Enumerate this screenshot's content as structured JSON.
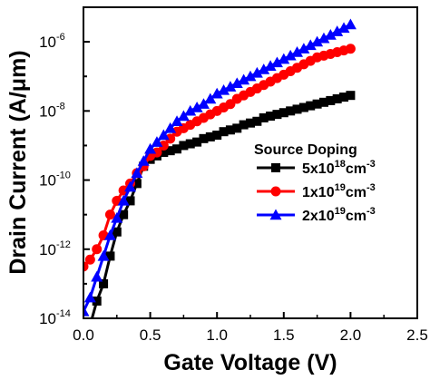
{
  "chart_data": {
    "type": "line",
    "xlabel": "Gate Voltage (V)",
    "ylabel": "Drain Current (A/μm)",
    "xlim": [
      0.0,
      2.5
    ],
    "ylim_exponent": [
      -14,
      -5
    ],
    "y_scale": "log",
    "x_ticks": [
      "0.0",
      "0.5",
      "1.0",
      "1.5",
      "2.0",
      "2.5"
    ],
    "y_ticks": [
      {
        "base": "10",
        "exp": "-6"
      },
      {
        "base": "10",
        "exp": "-8"
      },
      {
        "base": "10",
        "exp": "-10"
      },
      {
        "base": "10",
        "exp": "-12"
      },
      {
        "base": "10",
        "exp": "-14"
      }
    ],
    "legend": {
      "title": "Source Doping",
      "placement": "right"
    },
    "series": [
      {
        "name": "5x10^18 cm^-3",
        "label_parts": [
          "5x10",
          "18",
          "cm",
          "-3"
        ],
        "color": "#000000",
        "marker": "square",
        "x": [
          0.0,
          0.05,
          0.1,
          0.15,
          0.2,
          0.25,
          0.3,
          0.35,
          0.4,
          0.45,
          0.5,
          0.55,
          0.6,
          0.65,
          0.7,
          0.75,
          0.8,
          0.85,
          0.9,
          0.95,
          1.0,
          1.05,
          1.1,
          1.15,
          1.2,
          1.25,
          1.3,
          1.35,
          1.4,
          1.45,
          1.5,
          1.55,
          1.6,
          1.65,
          1.7,
          1.75,
          1.8,
          1.85,
          1.9,
          1.95,
          2.0
        ],
        "log10_y": [
          -14.4,
          -14.2,
          -13.5,
          -13.0,
          -12.2,
          -11.5,
          -11.0,
          -10.6,
          -10.1,
          -9.6,
          -9.4,
          -9.3,
          -9.2,
          -9.15,
          -9.1,
          -9.0,
          -8.95,
          -8.9,
          -8.8,
          -8.75,
          -8.7,
          -8.6,
          -8.55,
          -8.5,
          -8.4,
          -8.35,
          -8.3,
          -8.2,
          -8.15,
          -8.1,
          -8.05,
          -8.0,
          -7.95,
          -7.9,
          -7.85,
          -7.8,
          -7.75,
          -7.7,
          -7.65,
          -7.6,
          -7.55
        ]
      },
      {
        "name": "1x10^19 cm^-3",
        "label_parts": [
          "1x10",
          "19",
          "cm",
          "-3"
        ],
        "color": "#ff0000",
        "marker": "circle",
        "x": [
          0.0,
          0.05,
          0.1,
          0.15,
          0.2,
          0.25,
          0.3,
          0.35,
          0.4,
          0.45,
          0.5,
          0.55,
          0.6,
          0.65,
          0.7,
          0.75,
          0.8,
          0.85,
          0.9,
          0.95,
          1.0,
          1.05,
          1.1,
          1.15,
          1.2,
          1.25,
          1.3,
          1.35,
          1.4,
          1.45,
          1.5,
          1.55,
          1.6,
          1.65,
          1.7,
          1.75,
          1.8,
          1.85,
          1.9,
          1.95,
          2.0
        ],
        "log10_y": [
          -12.5,
          -12.3,
          -12.0,
          -11.6,
          -11.0,
          -10.6,
          -10.3,
          -10.1,
          -9.8,
          -9.6,
          -9.3,
          -9.2,
          -9.0,
          -8.8,
          -8.6,
          -8.5,
          -8.4,
          -8.3,
          -8.2,
          -8.1,
          -8.0,
          -7.9,
          -7.8,
          -7.65,
          -7.55,
          -7.45,
          -7.35,
          -7.25,
          -7.15,
          -7.05,
          -6.95,
          -6.85,
          -6.75,
          -6.65,
          -6.55,
          -6.45,
          -6.4,
          -6.35,
          -6.3,
          -6.25,
          -6.2
        ]
      },
      {
        "name": "2x10^19 cm^-3",
        "label_parts": [
          "2x10",
          "19",
          "cm",
          "-3"
        ],
        "color": "#0000ff",
        "marker": "triangle",
        "x": [
          0.0,
          0.05,
          0.1,
          0.15,
          0.2,
          0.25,
          0.3,
          0.35,
          0.4,
          0.45,
          0.5,
          0.55,
          0.6,
          0.65,
          0.7,
          0.75,
          0.8,
          0.85,
          0.9,
          0.95,
          1.0,
          1.05,
          1.1,
          1.15,
          1.2,
          1.25,
          1.3,
          1.35,
          1.4,
          1.45,
          1.5,
          1.55,
          1.6,
          1.65,
          1.7,
          1.75,
          1.8,
          1.85,
          1.9,
          1.95,
          2.0
        ],
        "log10_y": [
          -13.8,
          -13.4,
          -12.8,
          -12.2,
          -11.6,
          -11.1,
          -10.6,
          -10.2,
          -9.8,
          -9.45,
          -9.1,
          -8.9,
          -8.7,
          -8.5,
          -8.3,
          -8.15,
          -8.0,
          -7.9,
          -7.8,
          -7.65,
          -7.5,
          -7.4,
          -7.3,
          -7.2,
          -7.1,
          -7.0,
          -6.9,
          -6.8,
          -6.7,
          -6.6,
          -6.5,
          -6.4,
          -6.3,
          -6.2,
          -6.1,
          -6.0,
          -5.9,
          -5.8,
          -5.7,
          -5.6,
          -5.5
        ]
      }
    ]
  }
}
